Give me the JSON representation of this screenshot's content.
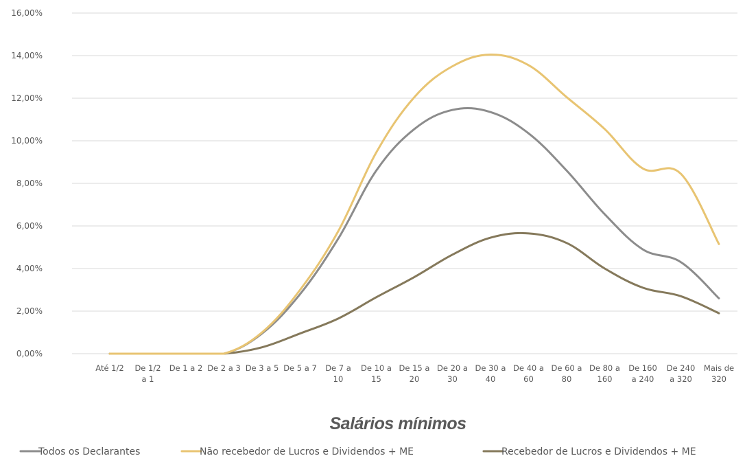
{
  "chart_data": {
    "type": "line",
    "title": "",
    "xlabel": "Salários mínimos",
    "ylabel": "",
    "ylim": [
      0,
      16
    ],
    "yticks": [
      "0,00%",
      "2,00%",
      "4,00%",
      "6,00%",
      "8,00%",
      "10,00%",
      "12,00%",
      "14,00%",
      "16,00%"
    ],
    "grid": "horizontal",
    "legend_position": "bottom",
    "categories": [
      [
        "Até 1/2"
      ],
      [
        "De 1/2",
        "a 1"
      ],
      [
        "De 1 a 2"
      ],
      [
        "De 2 a 3"
      ],
      [
        "De 3 a 5"
      ],
      [
        "De 5 a 7"
      ],
      [
        "De 7 a",
        "10"
      ],
      [
        "De 10 a",
        "15"
      ],
      [
        "De 15 a",
        "20"
      ],
      [
        "De 20 a",
        "30"
      ],
      [
        "De 30 a",
        "40"
      ],
      [
        "De 40 a",
        "60"
      ],
      [
        "De 60 a",
        "80"
      ],
      [
        "De 80 a",
        "160"
      ],
      [
        "De 160",
        "a 240"
      ],
      [
        "De 240",
        "a 320"
      ],
      [
        "Mais de",
        "320"
      ]
    ],
    "series": [
      {
        "name": "Todos os Declarantes",
        "color": "#8c8c8c",
        "values": [
          0.0,
          0.0,
          0.0,
          0.0,
          0.95,
          2.8,
          5.4,
          8.6,
          10.55,
          11.45,
          11.35,
          10.35,
          8.6,
          6.55,
          4.9,
          4.3,
          2.6
        ]
      },
      {
        "name": "Não recebedor de Lucros e Dividendos + ME",
        "color": "#e8c472",
        "values": [
          0.0,
          0.0,
          0.0,
          0.0,
          1.0,
          3.0,
          5.75,
          9.45,
          12.05,
          13.5,
          14.05,
          13.55,
          12.05,
          10.55,
          8.7,
          8.45,
          5.15
        ]
      },
      {
        "name": "Recebedor de Lucros e Dividendos + ME",
        "color": "#85795b",
        "values": [
          0.0,
          0.0,
          0.0,
          0.0,
          0.3,
          0.95,
          1.65,
          2.65,
          3.6,
          4.65,
          5.45,
          5.65,
          5.2,
          4.0,
          3.1,
          2.7,
          1.9
        ]
      }
    ]
  }
}
